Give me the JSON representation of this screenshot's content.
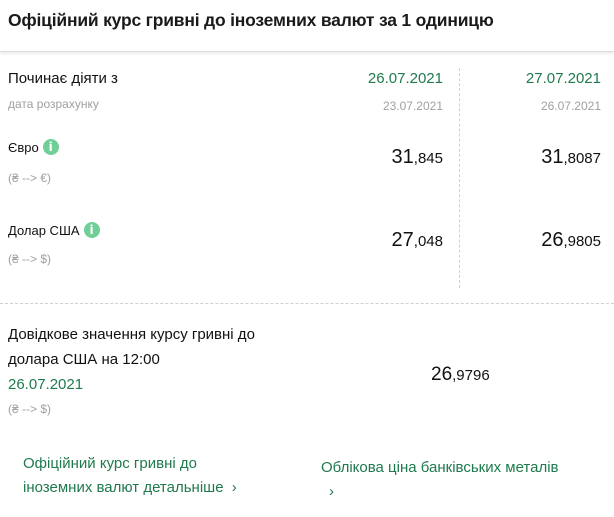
{
  "title": "Офіційний курс гривні до іноземних валют за 1 одиницю",
  "header_row": {
    "label": "Починає діяти з",
    "sublabel": "дата розрахунку",
    "columns": [
      {
        "effective": "26.07.2021",
        "calc": "23.07.2021"
      },
      {
        "effective": "27.07.2021",
        "calc": "26.07.2021"
      }
    ]
  },
  "currencies": [
    {
      "name": "Євро",
      "direction": "(₴ --> €)",
      "values": [
        {
          "int": "31",
          "frac": ",845"
        },
        {
          "int": "31",
          "frac": ",8087"
        }
      ]
    },
    {
      "name": "Долар США",
      "direction": "(₴ --> $)",
      "values": [
        {
          "int": "27",
          "frac": ",048"
        },
        {
          "int": "26",
          "frac": ",9805"
        }
      ]
    }
  ],
  "reference": {
    "label_line1": "Довідкове значення курсу гривні до",
    "label_line2": "долара США на 12:00",
    "date": "26.07.2021",
    "direction": "(₴ --> $)",
    "value_int": "26",
    "value_frac": ",9796"
  },
  "links": [
    {
      "line1": "Офіційний курс гривні до",
      "line2": "іноземних валют детальніше",
      "chevron": "›"
    },
    {
      "line1": "Облікова ціна банківських металів",
      "chevron": "›"
    }
  ],
  "colors": {
    "accent": "#1f7a4d",
    "info_icon": "#6fcf97",
    "muted": "#a0a0a0"
  }
}
